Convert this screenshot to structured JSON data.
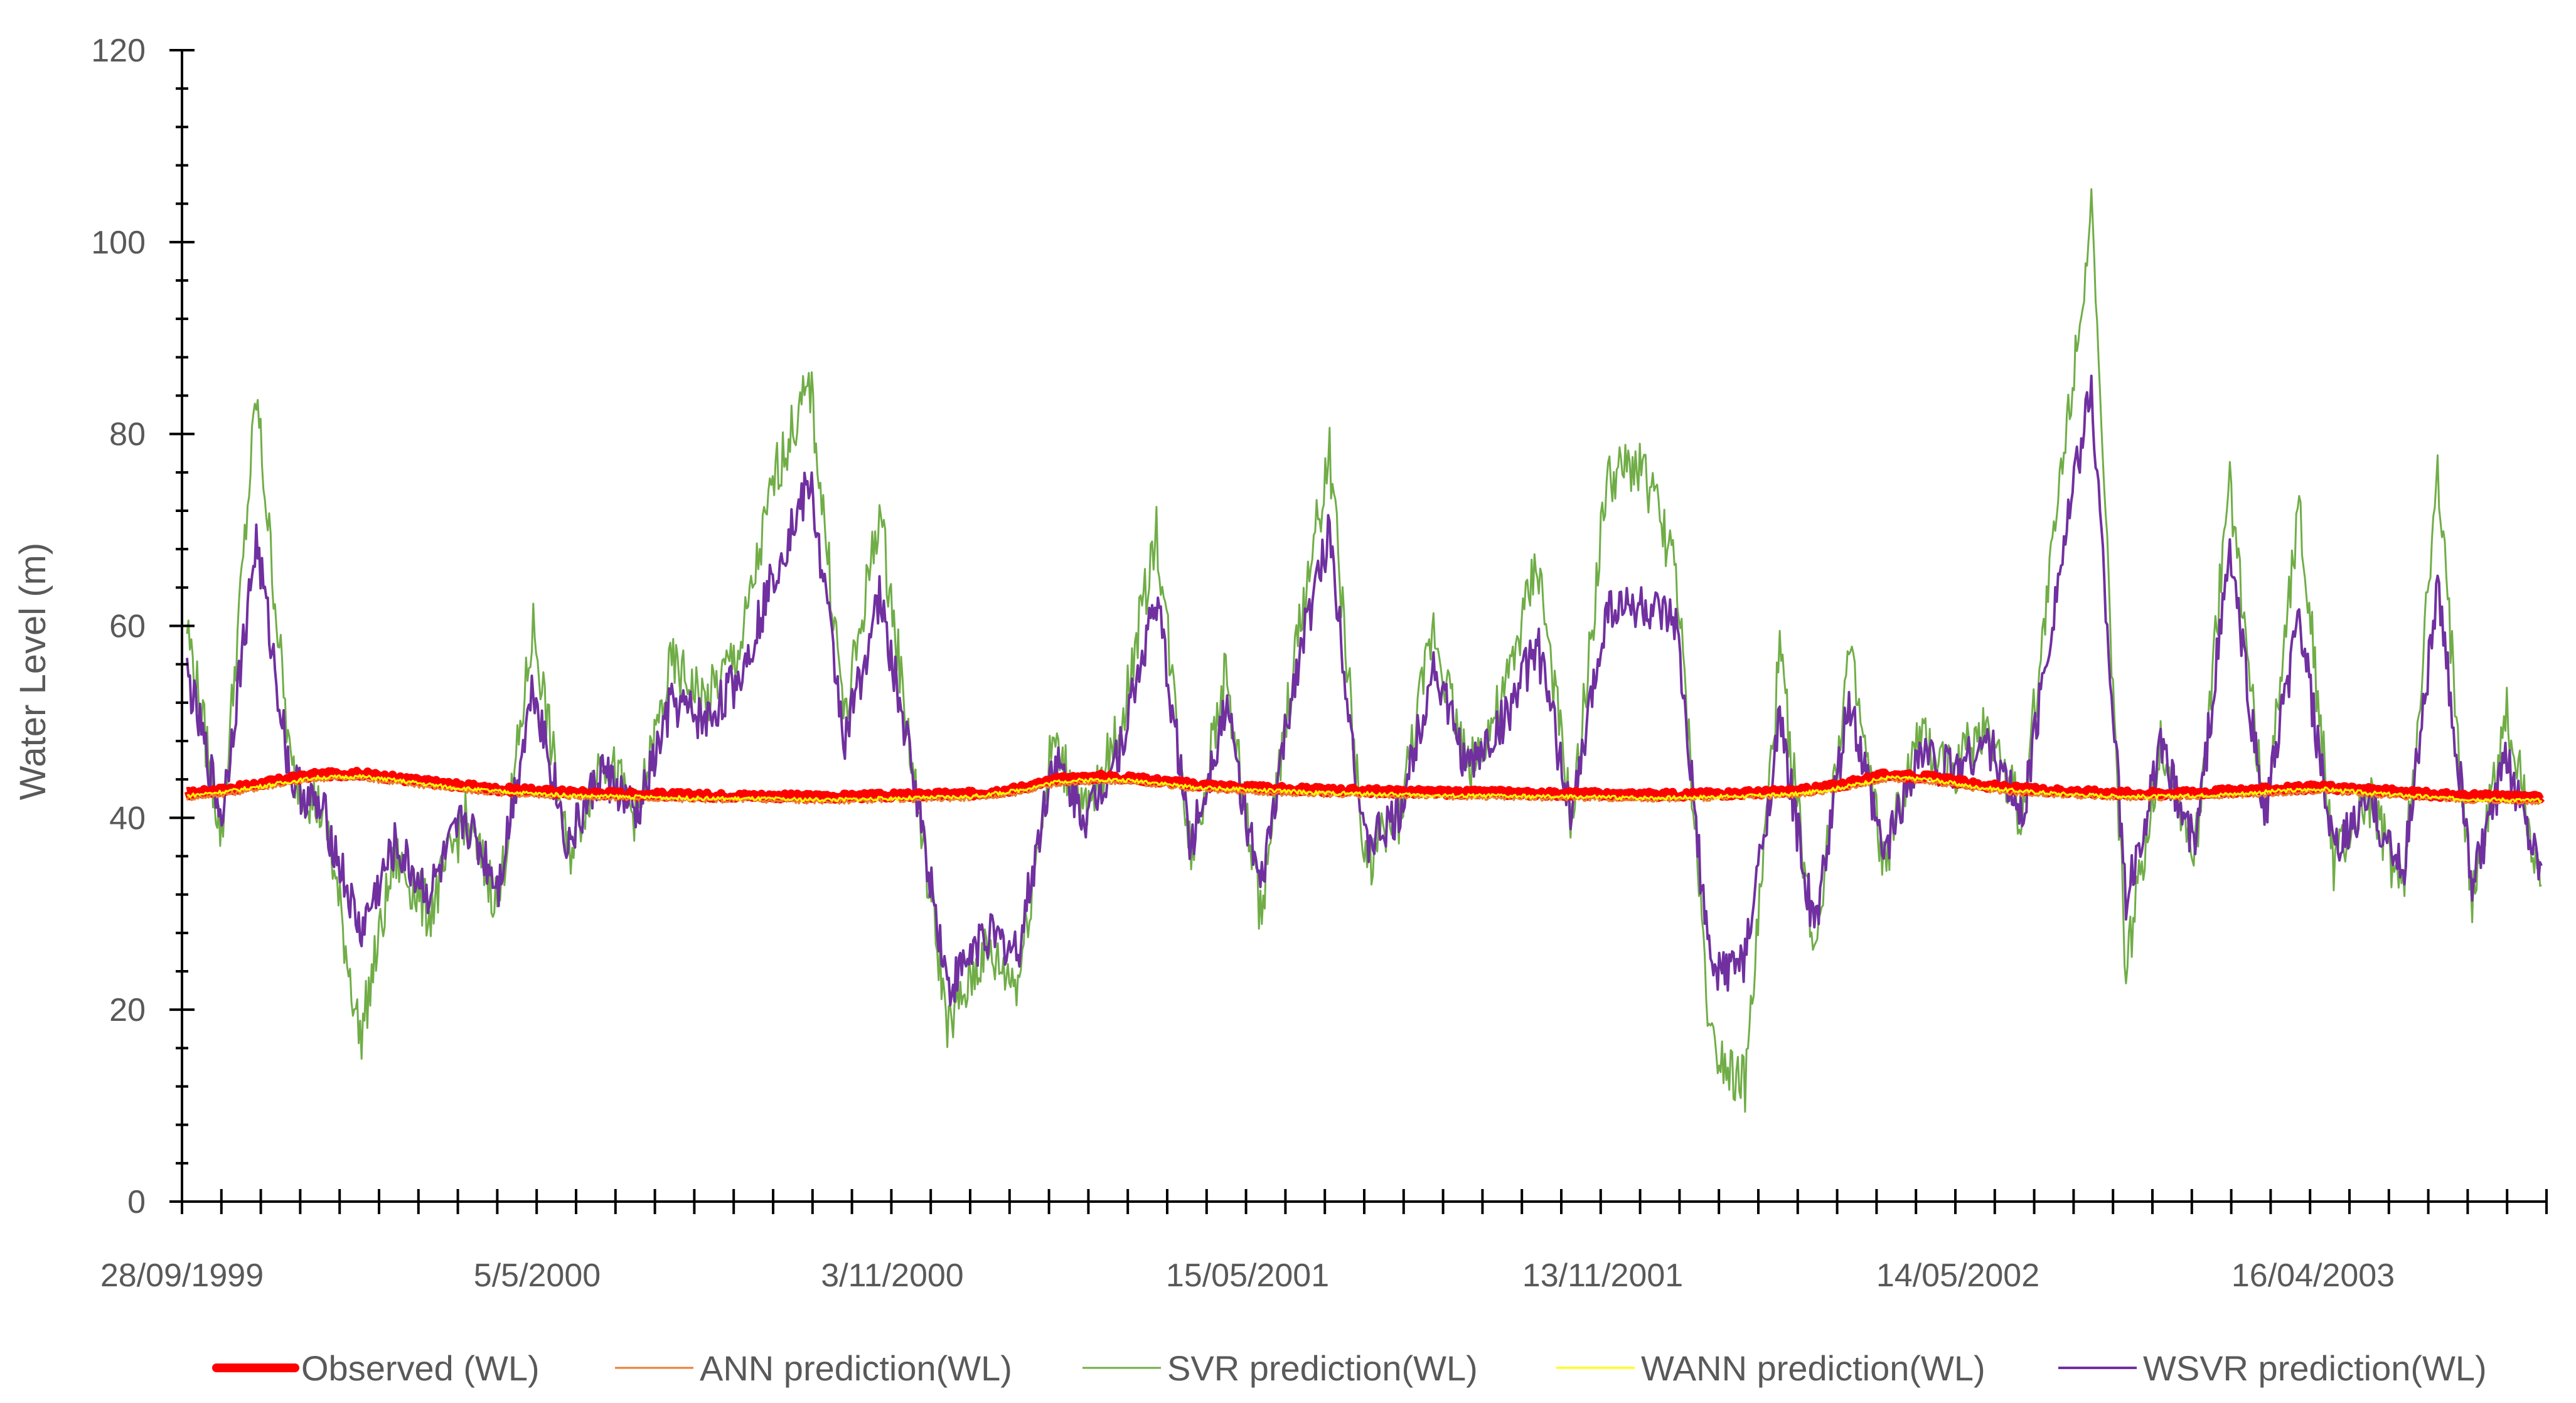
{
  "chart_data": {
    "type": "line",
    "ylabel": "Water Level (m)",
    "ylim": [
      0,
      120
    ],
    "yticks": [
      0,
      20,
      40,
      60,
      80,
      100,
      120
    ],
    "x_tick_labels": [
      "28/09/1999",
      "5/5/2000",
      "3/11/2000",
      "15/05/2001",
      "13/11/2001",
      "14/05/2002",
      "16/04/2003"
    ],
    "grid": false,
    "legend_position": "bottom",
    "series": [
      {
        "name": "Observed (WL)",
        "color": "#ff0000",
        "values": [
          42.5,
          43.0,
          43.8,
          44.5,
          44.6,
          44.0,
          43.5,
          43.0,
          42.8,
          42.6,
          42.5,
          42.4,
          42.3,
          42.3,
          42.2,
          42.2,
          42.3,
          42.4,
          42.5,
          43.0,
          44.0,
          44.3,
          44.0,
          43.5,
          43.2,
          43.0,
          42.9,
          42.8,
          42.7,
          42.6,
          42.6,
          42.5,
          42.5,
          42.4,
          42.4,
          42.5,
          42.6,
          42.8,
          43.5,
          44.5,
          44.2,
          43.5,
          43.0,
          42.8,
          42.6,
          42.5,
          42.6,
          42.8,
          43.0,
          43.2,
          42.9,
          42.6,
          42.3,
          42.2,
          42.1
        ]
      },
      {
        "name": "ANN prediction(WL)",
        "color": "#ed7d31",
        "values": [
          42.0,
          42.5,
          43.3,
          44.0,
          44.1,
          43.5,
          43.0,
          42.5,
          42.3,
          42.1,
          42.0,
          41.9,
          41.8,
          41.8,
          41.7,
          41.7,
          41.8,
          41.9,
          42.0,
          42.5,
          43.5,
          43.8,
          43.5,
          43.0,
          42.7,
          42.5,
          42.4,
          42.3,
          42.2,
          42.1,
          42.1,
          42.0,
          42.0,
          41.9,
          41.9,
          42.0,
          42.1,
          42.3,
          43.0,
          44.0,
          43.7,
          43.0,
          42.5,
          42.3,
          42.1,
          42.0,
          42.1,
          42.3,
          42.5,
          42.7,
          42.4,
          42.1,
          41.8,
          41.7,
          41.6
        ]
      },
      {
        "name": "SVR prediction(WL)",
        "color": "#70ad47",
        "values": [
          60,
          38,
          84,
          45,
          40,
          17,
          36,
          30,
          40,
          31,
          60,
          36,
          47,
          40,
          56,
          52,
          58,
          76,
          85,
          50,
          72,
          44,
          18,
          26,
          23,
          48,
          40,
          50,
          70,
          36,
          55,
          30,
          57,
          78,
          35,
          40,
          60,
          45,
          52,
          67,
          39,
          75,
          77,
          66,
          17,
          12,
          57,
          26,
          57,
          35,
          48,
          45,
          50,
          40,
          72,
          103,
          24,
          48,
          36,
          75,
          40,
          73,
          35,
          42,
          32,
          75,
          31,
          51,
          33
        ]
      },
      {
        "name": "WANN prediction(WL)",
        "color": "#ffff00",
        "values": [
          42.3,
          42.8,
          43.5,
          44.2,
          44.3,
          43.8,
          43.2,
          42.8,
          42.5,
          42.3,
          42.2,
          42.1,
          42.0,
          42.0,
          41.9,
          41.9,
          42.0,
          42.1,
          42.2,
          42.8,
          43.8,
          44.0,
          43.8,
          43.2,
          43.0,
          42.8,
          42.6,
          42.5,
          42.4,
          42.3,
          42.3,
          42.2,
          42.2,
          42.1,
          42.1,
          42.2,
          42.3,
          42.5,
          43.2,
          44.2,
          44.0,
          43.2,
          42.8,
          42.5,
          42.3,
          42.2,
          42.3,
          42.5,
          42.8,
          43.0,
          42.6,
          42.3,
          42.0,
          41.9,
          41.8
        ]
      },
      {
        "name": "WSVR prediction(WL)",
        "color": "#7030a0",
        "values": [
          55,
          40,
          69,
          44,
          40,
          28,
          37,
          32,
          40,
          33,
          54,
          37,
          45,
          40,
          52,
          50,
          55,
          66,
          75,
          48,
          63,
          44,
          22,
          28,
          26,
          46,
          40,
          48,
          63,
          37,
          52,
          32,
          55,
          70,
          37,
          40,
          56,
          45,
          50,
          58,
          40,
          62,
          62,
          60,
          24,
          25,
          50,
          28,
          52,
          36,
          47,
          45,
          48,
          40,
          64,
          85,
          31,
          47,
          37,
          68,
          40,
          61,
          36,
          42,
          34,
          64,
          33,
          46,
          35
        ]
      }
    ]
  }
}
